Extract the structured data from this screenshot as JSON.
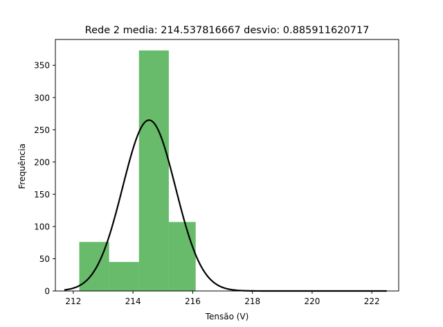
{
  "chart_data": {
    "type": "bar",
    "title": "Rede 2 media: 214.537816667 desvio: 0.885911620717",
    "xlabel": "Tensão (V)",
    "ylabel": "Frequência",
    "xlim": [
      211.4,
      222.9
    ],
    "ylim": [
      0,
      390
    ],
    "xticks": [
      212,
      214,
      216,
      218,
      220,
      222
    ],
    "yticks": [
      0,
      50,
      100,
      150,
      200,
      250,
      300,
      350
    ],
    "grid": false,
    "legend": "none",
    "bar_color": "#4caf50",
    "bar_opacity": 0.85,
    "line_color": "#000000",
    "histogram_bins": [
      {
        "start": 212.2,
        "end": 213.2,
        "count": 76
      },
      {
        "start": 213.2,
        "end": 214.2,
        "count": 45
      },
      {
        "start": 214.2,
        "end": 215.2,
        "count": 373
      },
      {
        "start": 215.2,
        "end": 216.1,
        "count": 107
      }
    ],
    "normal_curve": {
      "mean": 214.537816667,
      "std": 0.885911620717,
      "peak": 265,
      "x_range": [
        211.7,
        222.5
      ]
    }
  }
}
